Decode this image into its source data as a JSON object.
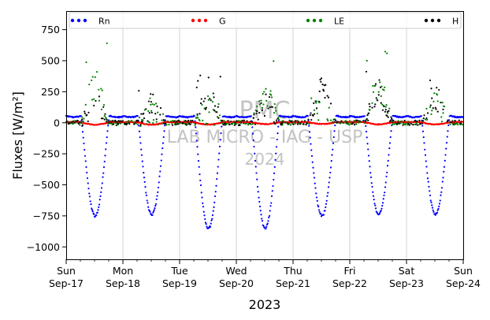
{
  "chart_data": {
    "type": "scatter",
    "ylabel": "Fluxes [W/m²]",
    "xlabel": "2023",
    "ylim": [
      -1100,
      900
    ],
    "yticks": [
      -1000,
      -750,
      -500,
      -250,
      0,
      250,
      500,
      750
    ],
    "ytick_labels": [
      "−1000",
      "−750",
      "−500",
      "−250",
      "0",
      "250",
      "500",
      "750"
    ],
    "xlim": [
      0,
      7
    ],
    "xticks": [
      {
        "day": "Sun",
        "date": "Sep-17"
      },
      {
        "day": "Mon",
        "date": "Sep-18"
      },
      {
        "day": "Tue",
        "date": "Sep-19"
      },
      {
        "day": "Wed",
        "date": "Sep-20"
      },
      {
        "day": "Thu",
        "date": "Sep-21"
      },
      {
        "day": "Fri",
        "date": "Sep-22"
      },
      {
        "day": "Sat",
        "date": "Sep-23"
      },
      {
        "day": "Sun",
        "date": "Sep-24"
      }
    ],
    "grid": "vertical",
    "legend_position": "top",
    "watermark": [
      "PMC",
      "LAB MICRO - IAG - USP",
      "2024"
    ],
    "series": [
      {
        "name": "Rn",
        "color": "#0000ff",
        "night_level": 55,
        "daily_minimum": [
          -750,
          -740,
          -850,
          -850,
          -750,
          -740,
          -740
        ]
      },
      {
        "name": "G",
        "color": "#ff0000",
        "daily_minimum": [
          -20,
          -20,
          -20,
          -15,
          -15,
          -18,
          -18
        ],
        "night_level": 5
      },
      {
        "name": "LE",
        "color": "#008000",
        "daily_peak": [
          660,
          250,
          200,
          560,
          200,
          600,
          300
        ]
      },
      {
        "name": "H",
        "color": "#000000",
        "daily_peak": [
          290,
          260,
          400,
          230,
          490,
          470,
          400
        ]
      }
    ]
  }
}
